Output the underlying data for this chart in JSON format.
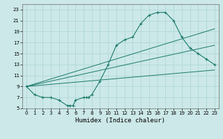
{
  "xlabel": "Humidex (Indice chaleur)",
  "ylabel": "",
  "bg_color": "#cce8e8",
  "grid_color": "#aad4d4",
  "line_color": "#1a7a6a",
  "xlim": [
    -0.5,
    23.5
  ],
  "ylim": [
    5,
    24
  ],
  "xticks": [
    0,
    1,
    2,
    3,
    4,
    5,
    6,
    7,
    8,
    9,
    10,
    11,
    12,
    13,
    14,
    15,
    16,
    17,
    18,
    19,
    20,
    21,
    22,
    23
  ],
  "yticks": [
    5,
    7,
    9,
    11,
    13,
    15,
    17,
    19,
    21,
    23
  ],
  "line1_x": [
    0,
    1,
    2,
    3,
    4,
    5,
    5.3,
    5.7,
    6,
    7,
    7.3,
    7.6,
    8,
    9,
    10,
    11,
    12,
    13,
    14,
    15,
    16,
    17,
    18,
    19,
    20,
    21,
    22,
    23
  ],
  "line1_y": [
    9,
    7.5,
    7,
    7,
    6.5,
    5.5,
    5.5,
    5.5,
    6.5,
    7,
    7,
    7,
    7.5,
    10,
    13,
    16.5,
    17.5,
    18,
    20.5,
    22,
    22.5,
    22.5,
    21,
    18,
    16,
    15,
    14,
    13
  ],
  "line2_x": [
    0,
    23
  ],
  "line2_y": [
    9,
    12
  ],
  "line3_x": [
    0,
    23
  ],
  "line3_y": [
    9,
    19.5
  ],
  "line4_x": [
    0,
    23
  ],
  "line4_y": [
    9,
    16.5
  ]
}
